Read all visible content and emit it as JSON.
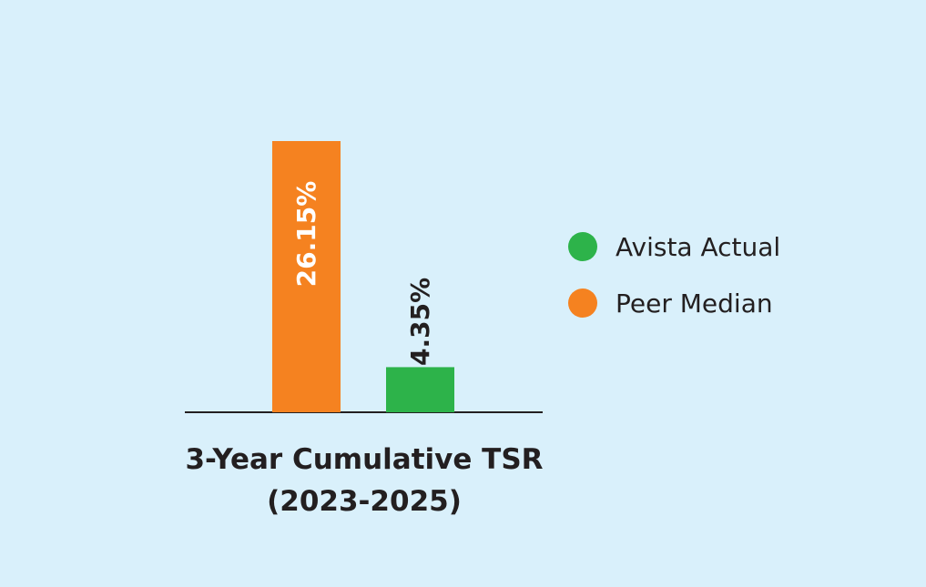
{
  "chart_data": {
    "type": "bar",
    "title_lines": [
      "3-Year Cumulative TSR",
      "(2023-2025)"
    ],
    "categories": [
      "Peer Median",
      "Avista Actual"
    ],
    "values": [
      26.15,
      4.35
    ],
    "value_labels": [
      "26.15%",
      "4.35%"
    ],
    "value_units": "%",
    "ylim": [
      0,
      26.15
    ],
    "grid": false,
    "legend_position": "right",
    "series": [
      {
        "name": "Peer Median",
        "value": 26.15,
        "label": "26.15%",
        "color": "#f58220"
      },
      {
        "name": "Avista Actual",
        "value": 4.35,
        "label": "4.35%",
        "color": "#2db34a"
      }
    ],
    "legend": [
      {
        "label": "Avista Actual",
        "color": "#2db34a"
      },
      {
        "label": "Peer Median",
        "color": "#f58220"
      }
    ]
  }
}
